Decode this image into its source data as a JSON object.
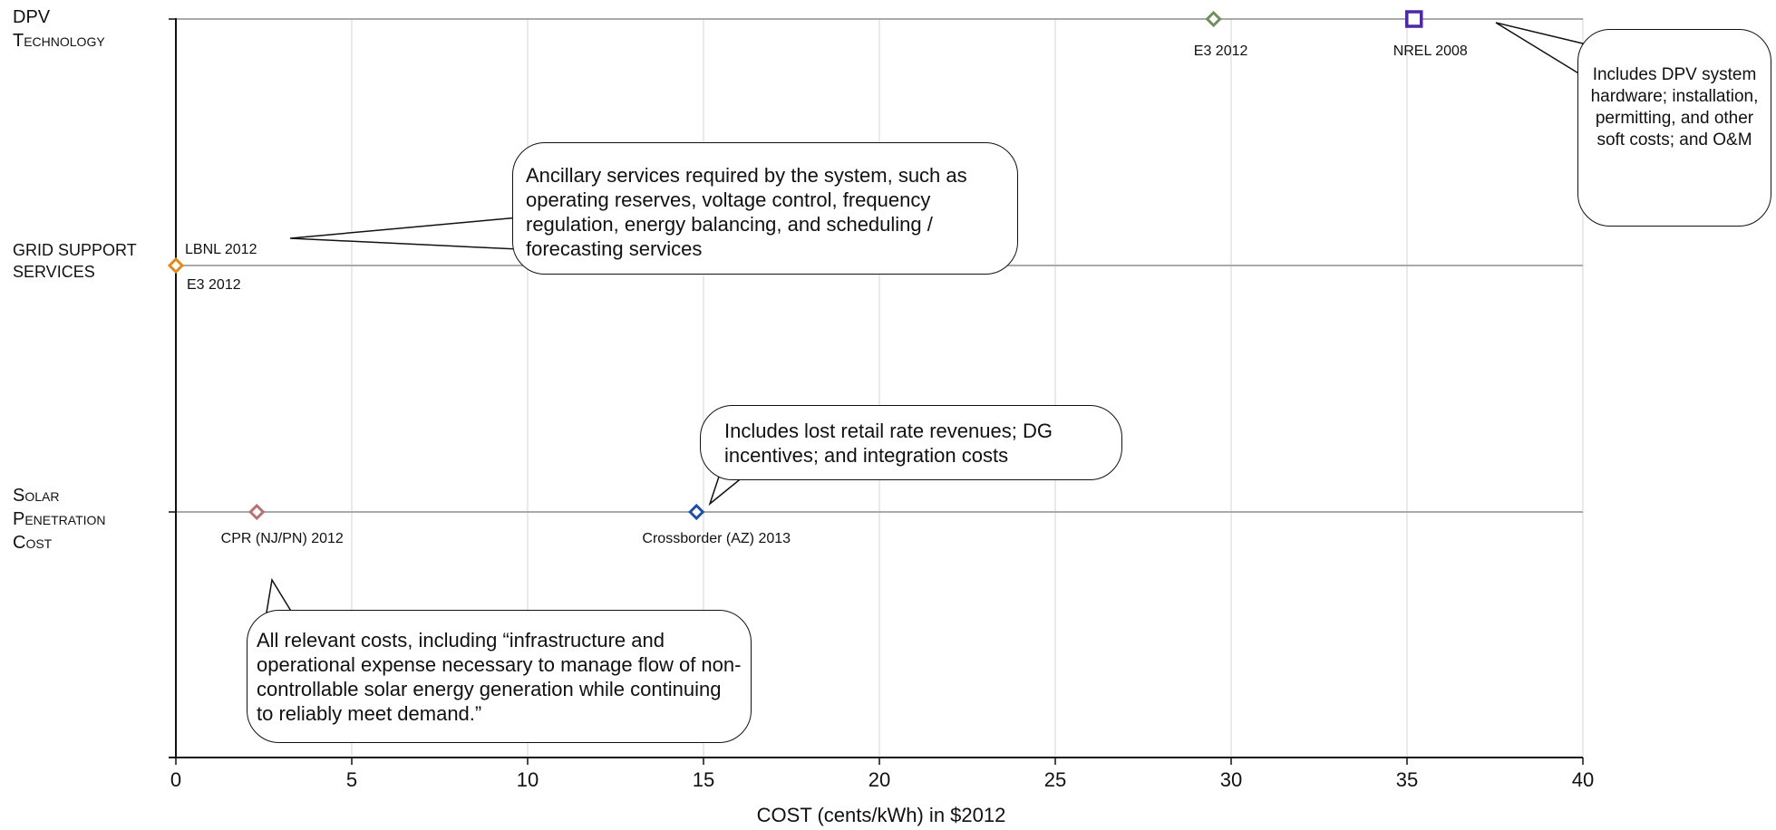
{
  "chart_data": {
    "type": "scatter",
    "title": "",
    "xlabel": "COST  (cents/kWh) in $2012",
    "ylabel": "",
    "xlim": [
      0,
      40
    ],
    "x_ticks": [
      0,
      5,
      10,
      15,
      20,
      25,
      30,
      35,
      40
    ],
    "grid": true,
    "categories": [
      {
        "id": "dpv",
        "label_line1": "DPV",
        "label_line2": "Technology"
      },
      {
        "id": "grid",
        "label_line1": "GRID SUPPORT",
        "label_line2": "SERVICES"
      },
      {
        "id": "pen",
        "label_line1": "Solar",
        "label_line2": "Penetration",
        "label_line3": "Cost"
      }
    ],
    "points": [
      {
        "label": "E3 2012",
        "category": "dpv",
        "x": 29.5,
        "color": "#6e8f5e",
        "marker": "diamond"
      },
      {
        "label": "NREL 2008",
        "category": "dpv",
        "x": 35.2,
        "color": "#4b2aa0",
        "marker": "square"
      },
      {
        "label": "LBNL 2012",
        "category": "grid",
        "x": 0.0,
        "color": "#e08a1e",
        "marker": "diamond"
      },
      {
        "label": "E3 2012",
        "category": "grid",
        "x": 0.0,
        "color": "#e08a1e",
        "marker": "diamond"
      },
      {
        "label": "CPR (NJ/PN) 2012",
        "category": "pen",
        "x": 2.3,
        "color": "#b87070",
        "marker": "diamond"
      },
      {
        "label": "Crossborder (AZ) 2013",
        "category": "pen",
        "x": 14.8,
        "color": "#1e4ea8",
        "marker": "diamond"
      }
    ],
    "annotations": {
      "grid": "Ancillary services required by the system, such as operating reserves, voltage control, frequency regulation, energy balancing, and scheduling / forecasting services",
      "dpv": "Includes DPV system hardware; installation, permitting, and other soft costs; and O&M",
      "pen": "Includes lost retail rate revenues; DG incentives; and integration costs",
      "all": "All relevant costs, including “infrastructure and operational expense necessary to manage flow of non-controllable solar energy generation while continuing to reliably meet demand.”"
    }
  }
}
